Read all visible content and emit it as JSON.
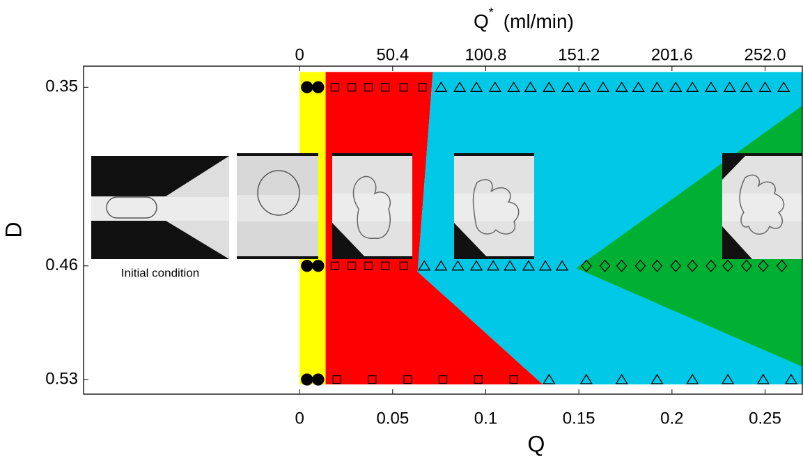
{
  "chart_data": {
    "type": "scatter",
    "xlabel": "Q",
    "ylabel": "D",
    "x2label": "Q",
    "x2label_superscript": "*",
    "x2label_unit": "(ml/min)",
    "annotation": "Initial condition",
    "xlim": [
      -0.116,
      0.27
    ],
    "xticks": [
      0,
      0.05,
      0.1,
      0.15,
      0.2,
      0.25
    ],
    "x2lim": [
      -116.928,
      272.16
    ],
    "x2ticks": [
      0,
      50.4,
      100.8,
      151.2,
      201.6,
      {
        "value": 252,
        "label": "252.0"
      }
    ],
    "ylim": [
      0.539,
      0.337
    ],
    "yticks": [
      0.35,
      0.46,
      0.53
    ],
    "regions": [
      {
        "color": "#ffff00",
        "q": [
          0,
          0.014,
          0.014,
          0
        ],
        "d": [
          0.3406,
          0.3406,
          0.533,
          0.533
        ]
      },
      {
        "color": "#ff0000",
        "q": [
          0.014,
          0.0716,
          0.0634,
          0.1306,
          0.014
        ],
        "d": [
          0.3406,
          0.3406,
          0.4636,
          0.533,
          0.533
        ]
      },
      {
        "color": "#00c8e6",
        "q": [
          0.0716,
          0.27,
          0.27,
          0.1306,
          0.0634
        ],
        "d": [
          0.3406,
          0.3406,
          0.533,
          0.533,
          0.4636
        ]
      },
      {
        "color": "#00b033",
        "q": [
          0.1485,
          0.27,
          0.27
        ],
        "d": [
          0.4614,
          0.3613,
          0.5221
        ]
      }
    ],
    "series": [
      {
        "marker": "circle",
        "color": "#000000",
        "x": [
          0.004,
          0.01,
          0.004,
          0.01,
          0.004,
          0.01
        ],
        "y": [
          0.35,
          0.35,
          0.46,
          0.46,
          0.53,
          0.53
        ]
      },
      {
        "marker": "square",
        "color": "#000000",
        "x": [
          0.019,
          0.028,
          0.037,
          0.046,
          0.056,
          0.066,
          0.019,
          0.028,
          0.037,
          0.046,
          0.056,
          0.02,
          0.039,
          0.058,
          0.077,
          0.096,
          0.115
        ],
        "y": [
          0.35,
          0.35,
          0.35,
          0.35,
          0.35,
          0.35,
          0.46,
          0.46,
          0.46,
          0.46,
          0.46,
          0.53,
          0.53,
          0.53,
          0.53,
          0.53,
          0.53
        ]
      },
      {
        "marker": "triangle",
        "color": "#000000",
        "x": [
          0.076,
          0.086,
          0.095,
          0.105,
          0.115,
          0.124,
          0.134,
          0.144,
          0.153,
          0.163,
          0.173,
          0.182,
          0.192,
          0.202,
          0.211,
          0.221,
          0.231,
          0.24,
          0.25,
          0.26,
          0.067,
          0.076,
          0.085,
          0.095,
          0.104,
          0.113,
          0.123,
          0.132,
          0.141,
          0.134,
          0.154,
          0.173,
          0.192,
          0.211,
          0.23,
          0.249,
          0.264
        ],
        "y": [
          0.35,
          0.35,
          0.35,
          0.35,
          0.35,
          0.35,
          0.35,
          0.35,
          0.35,
          0.35,
          0.35,
          0.35,
          0.35,
          0.35,
          0.35,
          0.35,
          0.35,
          0.35,
          0.35,
          0.35,
          0.46,
          0.46,
          0.46,
          0.46,
          0.46,
          0.46,
          0.46,
          0.46,
          0.46,
          0.53,
          0.53,
          0.53,
          0.53,
          0.53,
          0.53,
          0.53,
          0.53
        ]
      },
      {
        "marker": "diamond",
        "color": "#000000",
        "x": [
          0.154,
          0.164,
          0.173,
          0.183,
          0.192,
          0.202,
          0.211,
          0.221,
          0.23,
          0.24,
          0.249,
          0.259
        ],
        "y": [
          0.46,
          0.46,
          0.46,
          0.46,
          0.46,
          0.46,
          0.46,
          0.46,
          0.46,
          0.46,
          0.46,
          0.46
        ]
      }
    ]
  }
}
